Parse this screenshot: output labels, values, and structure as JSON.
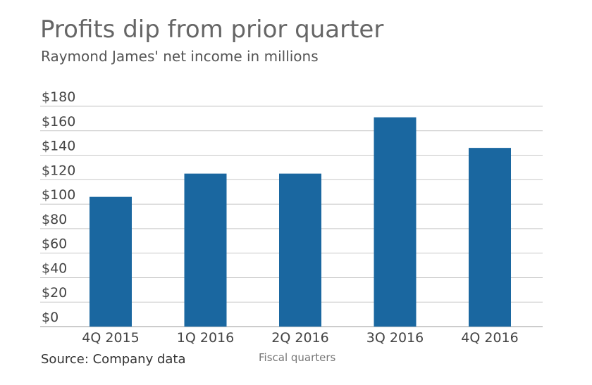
{
  "header": {
    "title": "Profits dip from prior quarter",
    "subtitle": "Raymond James' net income in millions"
  },
  "footer": {
    "source": "Source: Company data"
  },
  "colors": {
    "bar": "#1a67a0",
    "grid": "#c8c8c8",
    "axis": "#999999"
  },
  "chart_data": {
    "type": "bar",
    "title": "Profits dip from prior quarter",
    "subtitle": "Raymond James' net income in millions",
    "xlabel": "Fiscal quarters",
    "ylabel": "",
    "categories": [
      "4Q 2015",
      "1Q 2016",
      "2Q 2016",
      "3Q 2016",
      "4Q 2016"
    ],
    "values": [
      106,
      125,
      125,
      171,
      146
    ],
    "ylim": [
      0,
      180
    ],
    "yticks": [
      0,
      20,
      40,
      60,
      80,
      100,
      120,
      140,
      160,
      180
    ],
    "ytick_labels": [
      "$0",
      "$20",
      "$40",
      "$60",
      "$80",
      "$100",
      "$120",
      "$140",
      "$160",
      "$180"
    ],
    "grid": true,
    "legend": "none"
  }
}
